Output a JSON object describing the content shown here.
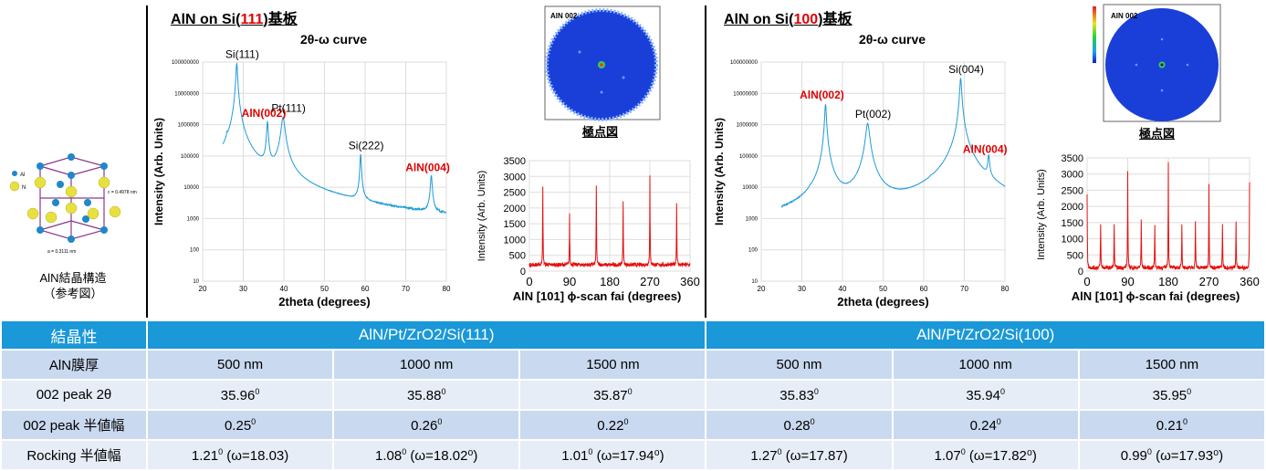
{
  "structure": {
    "caption_line1": "AlN結晶構造",
    "caption_line2": "（参考図）",
    "label_al": "Al",
    "label_n": "N",
    "label_c": "c = 0.4978 nm",
    "label_a": "a = 0.3111 nm"
  },
  "panels": [
    {
      "title_pre": "AlN on Si(",
      "title_red": "111",
      "title_post": ")基板",
      "xrd_title": "2θ-ω curve",
      "pole_label": "AlN 002",
      "pole_caption": "極点図"
    },
    {
      "title_pre": "AlN on Si(",
      "title_red": "100",
      "title_post": ")基板",
      "xrd_title": "2θ-ω curve",
      "pole_label": "AlN 002",
      "pole_caption": "極点図"
    }
  ],
  "colors": {
    "xrd_line": "#1e9ad6",
    "phi_line": "#e51010",
    "peak_red": "#e00000",
    "table_header": "#1a98d8"
  },
  "chart_data": [
    {
      "type": "line",
      "title": "2θ-ω curve",
      "xlabel": "2theta (degrees)",
      "ylabel": "Intensity (Arb. Units)",
      "xlim": [
        20,
        80
      ],
      "ylim": [
        10,
        100000000
      ],
      "yscale": "log",
      "xticks": [
        "20",
        "30",
        "40",
        "50",
        "60",
        "70",
        "80"
      ],
      "yticks": [
        "10",
        "100",
        "1000",
        "10000",
        "100000",
        "1000000",
        "10000000",
        "100000000"
      ],
      "baseline": 250,
      "peaks": [
        {
          "x": 26.0,
          "y": 150000,
          "w": 0.25
        },
        {
          "x": 28.4,
          "y": 90000000,
          "w": 0.35
        },
        {
          "x": 35.96,
          "y": 1200000,
          "w": 0.35
        },
        {
          "x": 39.8,
          "y": 1700000,
          "w": 0.8
        },
        {
          "x": 58.9,
          "y": 110000,
          "w": 0.3
        },
        {
          "x": 76.3,
          "y": 22000,
          "w": 0.4
        }
      ],
      "annotations": [
        {
          "text": "Si(111)",
          "x": 28.4,
          "y": 90000000,
          "red": false
        },
        {
          "text": "AlN(002)",
          "x": 35.96,
          "y": 1200000,
          "red": true
        },
        {
          "text": "Pt(111)",
          "x": 39.8,
          "y": 1700000,
          "red": false
        },
        {
          "text": "Si(222)",
          "x": 58.9,
          "y": 110000,
          "red": false
        },
        {
          "text": "AlN(004)",
          "x": 76.3,
          "y": 22000,
          "red": true
        }
      ]
    },
    {
      "type": "line",
      "title": "",
      "xlabel": "AlN [101] ϕ-scan fai (degrees)",
      "ylabel": "Intensity (Arb. Units)",
      "xlim": [
        0,
        360
      ],
      "ylim": [
        0,
        3500
      ],
      "xticks": [
        "0",
        "90",
        "180",
        "270",
        "360"
      ],
      "yticks": [
        "0",
        "500",
        "1000",
        "1500",
        "2000",
        "2500",
        "3000",
        "3500"
      ],
      "baseline": 200,
      "peaks": [
        {
          "x": 30,
          "y": 2650
        },
        {
          "x": 90,
          "y": 1800
        },
        {
          "x": 150,
          "y": 2650
        },
        {
          "x": 210,
          "y": 2200
        },
        {
          "x": 270,
          "y": 3000
        },
        {
          "x": 330,
          "y": 2150
        }
      ]
    },
    {
      "type": "line",
      "title": "2θ-ω curve",
      "xlabel": "2theta (degrees)",
      "ylabel": "Intensity (Arb. Units)",
      "xlim": [
        20,
        80
      ],
      "ylim": [
        10,
        100000000
      ],
      "yscale": "log",
      "xticks": [
        "20",
        "30",
        "40",
        "50",
        "60",
        "70",
        "80"
      ],
      "yticks": [
        "10",
        "100",
        "1000",
        "10000",
        "100000",
        "1000000",
        "10000000",
        "100000000"
      ],
      "baseline": 250,
      "peaks": [
        {
          "x": 32.0,
          "y": 800,
          "w": 0.3
        },
        {
          "x": 35.83,
          "y": 4500000,
          "w": 0.35
        },
        {
          "x": 42.3,
          "y": 700,
          "w": 0.4
        },
        {
          "x": 46.2,
          "y": 1100000,
          "w": 0.8
        },
        {
          "x": 61.7,
          "y": 1500,
          "w": 0.4
        },
        {
          "x": 69.1,
          "y": 30000000,
          "w": 0.4
        },
        {
          "x": 76.0,
          "y": 85000,
          "w": 0.4
        }
      ],
      "annotations": [
        {
          "text": "AlN(002)",
          "x": 35.83,
          "y": 4500000,
          "red": true
        },
        {
          "text": "Pt(002)",
          "x": 46.2,
          "y": 1100000,
          "red": false
        },
        {
          "text": "Si(004)",
          "x": 69.1,
          "y": 30000000,
          "red": false
        },
        {
          "text": "AlN(004)",
          "x": 76.0,
          "y": 85000,
          "red": true
        }
      ]
    },
    {
      "type": "line",
      "title": "",
      "xlabel": "AlN [101] ϕ-scan fai (degrees)",
      "ylabel": "Intensity (Arb. Units)",
      "xlim": [
        0,
        360
      ],
      "ylim": [
        0,
        3500
      ],
      "xticks": [
        "0",
        "90",
        "180",
        "270",
        "360"
      ],
      "yticks": [
        "0",
        "500",
        "1000",
        "1500",
        "2000",
        "2500",
        "3000",
        "3500"
      ],
      "baseline": 100,
      "peaks": [
        {
          "x": 0,
          "y": 2400
        },
        {
          "x": 30,
          "y": 1500
        },
        {
          "x": 60,
          "y": 1450
        },
        {
          "x": 90,
          "y": 3100
        },
        {
          "x": 120,
          "y": 1550
        },
        {
          "x": 150,
          "y": 1450
        },
        {
          "x": 180,
          "y": 3350
        },
        {
          "x": 210,
          "y": 1450
        },
        {
          "x": 240,
          "y": 1550
        },
        {
          "x": 270,
          "y": 2750
        },
        {
          "x": 300,
          "y": 1500
        },
        {
          "x": 330,
          "y": 1550
        },
        {
          "x": 360,
          "y": 2800
        }
      ]
    }
  ],
  "table": {
    "header": {
      "label": "結晶性",
      "group1": "AlN/Pt/ZrO2/Si(111)",
      "group2": "AlN/Pt/ZrO2/Si(100)"
    },
    "rows": [
      {
        "label": "AlN膜厚",
        "cells": [
          "500 nm",
          "1000 nm",
          "1500 nm",
          "500 nm",
          "1000 nm",
          "1500 nm"
        ]
      },
      {
        "label": "002 peak 2θ",
        "cells": [
          {
            "v": "35.96",
            "s": "0",
            "t": ""
          },
          {
            "v": "35.88",
            "s": "0",
            "t": ""
          },
          {
            "v": "35.87",
            "s": "0",
            "t": ""
          },
          {
            "v": "35.83",
            "s": "0",
            "t": ""
          },
          {
            "v": "35.94",
            "s": "0",
            "t": ""
          },
          {
            "v": "35.95",
            "s": "0",
            "t": ""
          }
        ]
      },
      {
        "label": "002 peak 半値幅",
        "cells": [
          {
            "v": "0.25",
            "s": "0",
            "t": ""
          },
          {
            "v": "0.26",
            "s": "0",
            "t": ""
          },
          {
            "v": "0.22",
            "s": "0",
            "t": ""
          },
          {
            "v": "0.28",
            "s": "0",
            "t": ""
          },
          {
            "v": "0.24",
            "s": "0",
            "t": ""
          },
          {
            "v": "0.21",
            "s": "0",
            "t": ""
          }
        ]
      },
      {
        "label": "Rocking 半値幅",
        "cells": [
          {
            "v": "1.21",
            "s": "0",
            "t": " (ω=18.03)"
          },
          {
            "v": "1.08",
            "s": "0",
            "t": " (ω=18.02⁰)"
          },
          {
            "v": "1.01",
            "s": "0",
            "t": " (ω=17.94⁰)"
          },
          {
            "v": "1.27",
            "s": "0",
            "t": " (ω=17.87)"
          },
          {
            "v": "1.07",
            "s": "0",
            "t": " (ω=17.82⁰)"
          },
          {
            "v": "0.99",
            "s": "0",
            "t": " (ω=17.93⁰)"
          }
        ]
      }
    ]
  }
}
